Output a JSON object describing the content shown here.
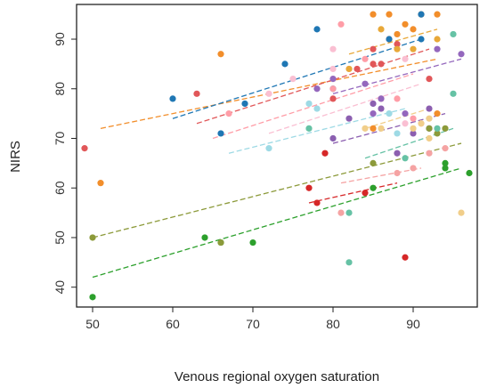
{
  "chart_data": {
    "type": "scatter",
    "title": "",
    "xlabel": "Venous regional oxygen saturation",
    "ylabel": "NIRS",
    "xlim": [
      48,
      98
    ],
    "ylim": [
      36,
      97
    ],
    "x_ticks": [
      50,
      60,
      70,
      80,
      90
    ],
    "y_ticks": [
      40,
      50,
      60,
      70,
      80,
      90
    ],
    "grid": false,
    "legend": "none",
    "series": [
      {
        "color": "#f28e2b",
        "dashed_fit": [
          [
            51,
            72
          ],
          [
            93,
            86
          ]
        ],
        "points": [
          [
            51,
            61
          ],
          [
            66,
            87
          ],
          [
            85,
            95
          ],
          [
            87,
            95
          ],
          [
            88,
            91
          ],
          [
            89,
            93
          ],
          [
            90,
            92
          ],
          [
            91,
            95
          ],
          [
            93,
            95
          ],
          [
            85,
            72
          ],
          [
            93,
            75
          ]
        ]
      },
      {
        "color": "#e15759",
        "dashed_fit": [
          [
            63,
            73
          ],
          [
            92,
            88
          ]
        ],
        "points": [
          [
            49,
            68
          ],
          [
            63,
            79
          ],
          [
            80,
            78
          ],
          [
            83,
            84
          ],
          [
            85,
            85
          ],
          [
            86,
            85
          ],
          [
            87,
            90
          ],
          [
            88,
            89
          ],
          [
            92,
            82
          ],
          [
            85,
            88
          ]
        ]
      },
      {
        "color": "#1f77b4",
        "dashed_fit": [
          [
            60,
            74
          ],
          [
            91,
            90
          ]
        ],
        "points": [
          [
            60,
            78
          ],
          [
            66,
            71
          ],
          [
            69,
            77
          ],
          [
            74,
            85
          ],
          [
            78,
            92
          ],
          [
            80,
            80
          ],
          [
            87,
            90
          ],
          [
            91,
            95
          ],
          [
            91,
            90
          ]
        ]
      },
      {
        "color": "#ff9da7",
        "dashed_fit": [
          [
            65,
            70
          ],
          [
            90,
            83
          ]
        ],
        "points": [
          [
            67,
            75
          ],
          [
            80,
            80
          ],
          [
            81,
            93
          ],
          [
            84,
            86
          ],
          [
            88,
            78
          ],
          [
            86,
            78
          ],
          [
            90,
            74
          ]
        ]
      },
      {
        "color": "#fabfd2",
        "dashed_fit": [
          [
            72,
            71
          ],
          [
            91,
            81
          ]
        ],
        "points": [
          [
            72,
            79
          ],
          [
            75,
            82
          ],
          [
            80,
            88
          ],
          [
            80,
            84
          ],
          [
            82,
            84
          ],
          [
            89,
            86
          ],
          [
            89,
            73
          ],
          [
            91,
            73
          ]
        ]
      },
      {
        "color": "#9edae5",
        "dashed_fit": [
          [
            67,
            67
          ],
          [
            89,
            76
          ]
        ],
        "points": [
          [
            72,
            68
          ],
          [
            77,
            77
          ],
          [
            78,
            76
          ],
          [
            87,
            75
          ],
          [
            88,
            71
          ],
          [
            80,
            70
          ]
        ]
      },
      {
        "color": "#9467bd",
        "dashed_fit": [
          [
            80,
            79
          ],
          [
            96,
            86
          ]
        ],
        "points": [
          [
            78,
            80
          ],
          [
            80,
            82
          ],
          [
            84,
            81
          ],
          [
            85,
            75
          ],
          [
            86,
            78
          ],
          [
            89,
            75
          ],
          [
            93,
            88
          ],
          [
            96,
            87
          ]
        ]
      },
      {
        "color": "#8c5fb0",
        "dashed_fit": [
          [
            80,
            69
          ],
          [
            94,
            75
          ]
        ],
        "points": [
          [
            80,
            70
          ],
          [
            82,
            74
          ],
          [
            85,
            77
          ],
          [
            86,
            76
          ],
          [
            88,
            67
          ],
          [
            90,
            71
          ],
          [
            92,
            76
          ],
          [
            92,
            72
          ]
        ]
      },
      {
        "color": "#2ca02c",
        "dashed_fit": [
          [
            50,
            42
          ],
          [
            96,
            64
          ]
        ],
        "points": [
          [
            50,
            38
          ],
          [
            64,
            50
          ],
          [
            66,
            49
          ],
          [
            70,
            49
          ],
          [
            85,
            60
          ],
          [
            94,
            65
          ],
          [
            94,
            64
          ],
          [
            97,
            63
          ]
        ]
      },
      {
        "color": "#8c9a3a",
        "dashed_fit": [
          [
            50,
            50
          ],
          [
            96,
            69
          ]
        ],
        "points": [
          [
            50,
            50
          ],
          [
            66,
            49
          ],
          [
            85,
            65
          ],
          [
            92,
            72
          ],
          [
            93,
            71
          ],
          [
            94,
            72
          ]
        ]
      },
      {
        "color": "#66c2a5",
        "dashed_fit": [
          [
            84,
            66
          ],
          [
            95,
            72
          ]
        ],
        "points": [
          [
            77,
            72
          ],
          [
            82,
            55
          ],
          [
            82,
            45
          ],
          [
            89,
            66
          ],
          [
            95,
            79
          ],
          [
            95,
            91
          ],
          [
            93,
            72
          ]
        ]
      },
      {
        "color": "#d62728",
        "dashed_fit": [
          [
            77,
            57
          ],
          [
            88,
            61
          ]
        ],
        "points": [
          [
            77,
            60
          ],
          [
            78,
            57
          ],
          [
            79,
            67
          ],
          [
            84,
            59
          ],
          [
            89,
            46
          ]
        ]
      },
      {
        "color": "#f5a3a3",
        "dashed_fit": [
          [
            81,
            61
          ],
          [
            91,
            64
          ]
        ],
        "points": [
          [
            81,
            55
          ],
          [
            90,
            64
          ],
          [
            92,
            67
          ],
          [
            94,
            68
          ],
          [
            88,
            63
          ]
        ]
      },
      {
        "color": "#f1ce8a",
        "dashed_fit": [
          [
            84,
            72
          ],
          [
            92,
            76
          ]
        ],
        "points": [
          [
            84,
            72
          ],
          [
            86,
            72
          ],
          [
            90,
            72
          ],
          [
            91,
            73
          ],
          [
            92,
            74
          ],
          [
            92,
            70
          ],
          [
            96,
            55
          ]
        ]
      },
      {
        "color": "#e8a838",
        "dashed_fit": [
          [
            82,
            87
          ],
          [
            93,
            92
          ]
        ],
        "points": [
          [
            82,
            84
          ],
          [
            86,
            92
          ],
          [
            88,
            88
          ],
          [
            90,
            88
          ],
          [
            93,
            90
          ]
        ]
      }
    ]
  }
}
